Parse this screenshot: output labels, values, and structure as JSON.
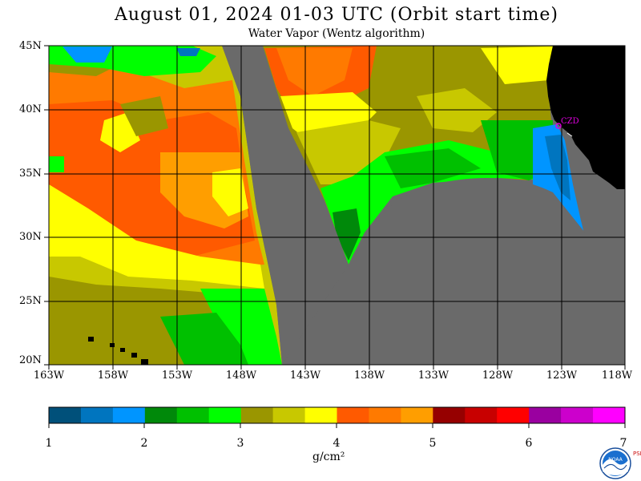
{
  "header": {
    "title": "August 01, 2024  01-03 UTC  (Orbit start time)",
    "subtitle": "Water Vapor (Wentz algorithm)"
  },
  "map": {
    "lat_labels": [
      "45N",
      "40N",
      "35N",
      "30N",
      "25N",
      "20N"
    ],
    "lon_labels": [
      "163W",
      "158W",
      "153W",
      "148W",
      "143W",
      "138W",
      "133W",
      "128W",
      "123W",
      "118W"
    ],
    "station_label": "CZD",
    "colors": {
      "land": "#000000",
      "no_data": "#6a6a6a",
      "grid": "#000000",
      "station": "#e000e0"
    }
  },
  "colorbar": {
    "tick_labels": [
      "1",
      "2",
      "3",
      "4",
      "5",
      "6",
      "7"
    ],
    "units": "g/cm²",
    "colors": [
      "#00507a",
      "#0075bf",
      "#0095ff",
      "#00890a",
      "#00c000",
      "#00ff00",
      "#9a9600",
      "#c8c800",
      "#ffff00",
      "#ff5a00",
      "#ff7a00",
      "#ff9e00",
      "#960000",
      "#c80000",
      "#ff0000",
      "#9a00a0",
      "#cc00cc",
      "#ff00ff"
    ]
  },
  "logo": {
    "text": "NOAA",
    "side_text": "PSL"
  }
}
